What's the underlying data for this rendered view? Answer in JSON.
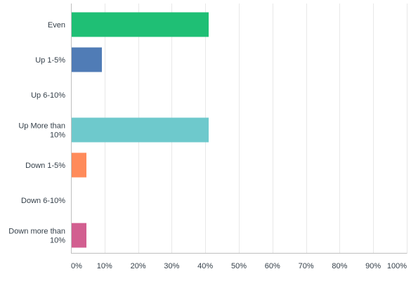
{
  "chart_data": {
    "type": "bar",
    "orientation": "horizontal",
    "title": "",
    "xlabel": "",
    "ylabel": "",
    "categories": [
      "Even",
      "Up 1-5%",
      "Up 6-10%",
      "Up More than 10%",
      "Down 1-5%",
      "Down 6-10%",
      "Down more than 10%"
    ],
    "category_label_lines": [
      [
        "Even"
      ],
      [
        "Up 1-5%"
      ],
      [
        "Up 6-10%"
      ],
      [
        "Up More than",
        "10%"
      ],
      [
        "Down 1-5%"
      ],
      [
        "Down 6-10%"
      ],
      [
        "Down more than",
        "10%"
      ]
    ],
    "values": [
      40.9,
      9.1,
      0,
      40.9,
      4.5,
      0,
      4.5
    ],
    "colors": [
      "#1fbf75",
      "#507cb6",
      "#6cc8c8",
      "#6ec9cc",
      "#ff8b5a",
      "#a06cc0",
      "#d25f90"
    ],
    "xlim": [
      0,
      100
    ],
    "xticks": [
      0,
      10,
      20,
      30,
      40,
      50,
      60,
      70,
      80,
      90,
      100
    ],
    "xtick_labels": [
      "0%",
      "10%",
      "20%",
      "30%",
      "40%",
      "50%",
      "60%",
      "70%",
      "80%",
      "90%",
      "100%"
    ],
    "grid": true,
    "legend": "none"
  }
}
